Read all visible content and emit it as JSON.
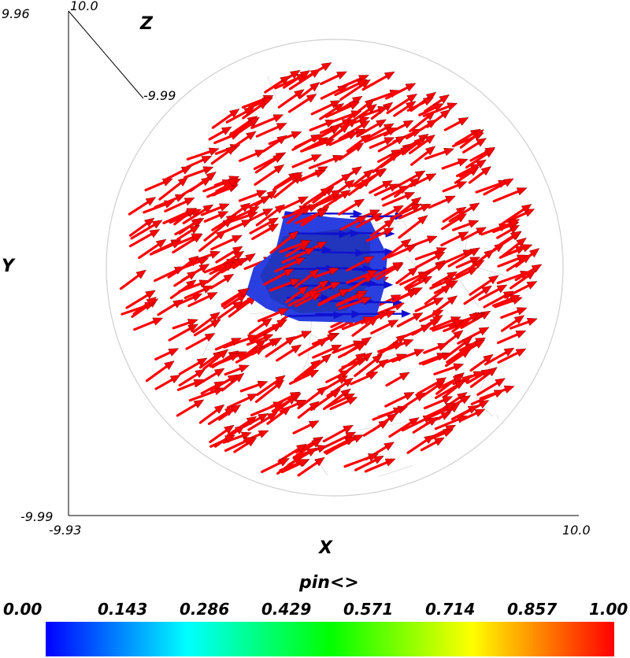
{
  "axes": {
    "x_label": "X",
    "y_label": "Y",
    "z_label": "Z",
    "x_min_label": "-9.93",
    "x_max_label": "10.0",
    "y_min_label": "-9.99",
    "y_max_label": "9.96",
    "z_min_label": "-9.99",
    "z_max_label": "10.0"
  },
  "colorbar": {
    "title": "pin<>",
    "ticks": [
      "0.00",
      "0.143",
      "0.286",
      "0.429",
      "0.571",
      "0.714",
      "0.857",
      "1.00"
    ]
  },
  "colors": {
    "outer_vectors": "#ff0000",
    "inner_vectors": "#1010d0",
    "inner_region": "#2a3fe0",
    "mesh": "#d8d8d8"
  }
}
